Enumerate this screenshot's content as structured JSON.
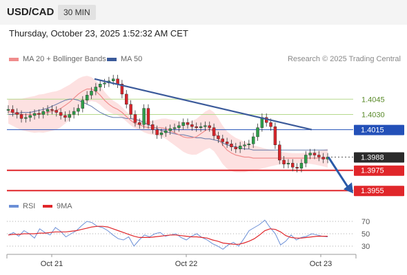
{
  "header": {
    "pair": "USD/CAD",
    "timeframe": "30 MIN"
  },
  "subheader": {
    "datetime": "Thursday, October 23, 2025 1:52:32 AM CET"
  },
  "legend": {
    "ma20": "MA 20 + Bollinger Bands",
    "ma50": "MA 50",
    "credit": "Research © 2025 Trading Central"
  },
  "rsi_legend": {
    "rsi": "RSI",
    "ma": "9MA"
  },
  "colors": {
    "ma20": "#f08c8c",
    "ma50": "#3b5a9a",
    "bollinger": "#fddcdc",
    "up": "#2e9e4a",
    "down": "#d8252b",
    "rsi": "#6b8fd6",
    "rsi_ma": "#e0262a",
    "support": "#e0262a",
    "pivot": "#2350b8",
    "resistance": "#b5d98c"
  },
  "chart_data": [
    {
      "type": "candlestick",
      "title": "USD/CAD",
      "x_ticks": [
        "Oct 21",
        "Oct 22",
        "Oct 23"
      ],
      "levels": [
        {
          "label": "1.4045",
          "value": 1.4045,
          "kind": "resistance"
        },
        {
          "label": "1.4030",
          "value": 1.403,
          "kind": "resistance"
        },
        {
          "label": "1.4015",
          "value": 1.4015,
          "kind": "pivot"
        },
        {
          "label": "1.3988",
          "value": 1.3988,
          "kind": "last"
        },
        {
          "label": "1.3975",
          "value": 1.3975,
          "kind": "support"
        },
        {
          "label": "1.3955",
          "value": 1.3955,
          "kind": "support"
        }
      ],
      "close_series": [
        1.4035,
        1.4032,
        1.403,
        1.4026,
        1.4027,
        1.4029,
        1.4031,
        1.403,
        1.4033,
        1.4035,
        1.4034,
        1.4032,
        1.4029,
        1.4027,
        1.403,
        1.4033,
        1.4036,
        1.4044,
        1.4049,
        1.4053,
        1.4057,
        1.406,
        1.4061,
        1.4063,
        1.4065,
        1.406,
        1.405,
        1.404,
        1.403,
        1.4022,
        1.402,
        1.4036,
        1.402,
        1.4015,
        1.401,
        1.4012,
        1.4014,
        1.4016,
        1.4017,
        1.4019,
        1.4022,
        1.402,
        1.4018,
        1.4017,
        1.4018,
        1.4019,
        1.4017,
        1.4009,
        1.4006,
        1.4003,
        1.4001,
        1.3998,
        1.3996,
        1.3999,
        1.4,
        1.4001,
        1.4008,
        1.4017,
        1.4027,
        1.4022,
        1.4018,
        1.4,
        1.3985,
        1.3981,
        1.3982,
        1.3978,
        1.3977,
        1.3982,
        1.399,
        1.3992,
        1.399,
        1.3988,
        1.3986,
        1.3988
      ],
      "ma20_series": [
        1.4033,
        1.4032,
        1.4031,
        1.403,
        1.403,
        1.403,
        1.403,
        1.4031,
        1.4031,
        1.4032,
        1.4033,
        1.4034,
        1.4036,
        1.4039,
        1.4042,
        1.4046,
        1.405,
        1.4053,
        1.4055,
        1.4055,
        1.4053,
        1.4049,
        1.4044,
        1.404,
        1.4037,
        1.4035,
        1.4032,
        1.4028,
        1.4024,
        1.4021,
        1.402,
        1.4018,
        1.4017,
        1.4017,
        1.4017,
        1.4017,
        1.4016,
        1.4014,
        1.4012,
        1.401,
        1.4008,
        1.4007,
        1.4007,
        1.4008,
        1.4011,
        1.4014,
        1.4016,
        1.4013,
        1.4007,
        1.4,
        1.3995,
        1.3992,
        1.399,
        1.3989,
        1.3988,
        1.3988,
        1.3987,
        1.3987,
        1.3987,
        1.3987,
        1.3987,
        1.3987,
        1.3987,
        1.3987,
        1.3987,
        1.3987,
        1.3987,
        1.3987,
        1.3987,
        1.3987,
        1.3987,
        1.3987,
        1.3987,
        1.3987
      ],
      "ma50_series": [
        1.403,
        1.403,
        1.4031,
        1.4032,
        1.4032,
        1.4032,
        1.4033,
        1.4034,
        1.4035,
        1.4036,
        1.4038,
        1.404,
        1.4042,
        1.4044,
        1.4045,
        1.4045,
        1.4044,
        1.4042,
        1.404,
        1.4038,
        1.4035,
        1.4032,
        1.403,
        1.4028,
        1.4027,
        1.4027,
        1.4027,
        1.4026,
        1.4026,
        1.4025,
        1.4024,
        1.4022,
        1.402,
        1.4018,
        1.4016,
        1.4014,
        1.4013,
        1.4012,
        1.4011,
        1.401,
        1.401,
        1.4009,
        1.4008,
        1.4007,
        1.4007,
        1.4006,
        1.4006,
        1.4005,
        1.4004,
        1.4002,
        1.4,
        1.3999,
        1.3998,
        1.3997,
        1.3996,
        1.3996,
        1.3995,
        1.3995,
        1.3995,
        1.3995,
        1.3995,
        1.3995,
        1.3995,
        1.3995,
        1.3995,
        1.3995,
        1.3995,
        1.3995,
        1.3995,
        1.3995,
        1.3995,
        1.3995,
        1.3995,
        1.3995
      ],
      "band_width": 0.0012,
      "trendline": {
        "from": [
          0.27,
          1.4065
        ],
        "to": [
          0.95,
          1.4015
        ]
      },
      "forecast_arrow": {
        "from": 1.3988,
        "to": 1.3955
      }
    },
    {
      "type": "line",
      "title": "RSI",
      "y_ticks": [
        70,
        50,
        30
      ],
      "ylim": [
        20,
        80
      ],
      "series": [
        {
          "name": "RSI",
          "values": [
            48,
            52,
            46,
            55,
            50,
            43,
            58,
            52,
            48,
            60,
            54,
            45,
            50,
            55,
            63,
            70,
            68,
            62,
            60,
            55,
            48,
            42,
            40,
            45,
            30,
            40,
            48,
            45,
            50,
            52,
            46,
            48,
            50,
            44,
            40,
            46,
            50,
            44,
            40,
            34,
            30,
            25,
            32,
            36,
            30,
            42,
            55,
            60,
            65,
            72,
            60,
            50,
            32,
            38,
            48,
            40,
            44,
            46,
            50,
            48,
            46,
            45
          ]
        },
        {
          "name": "9MA",
          "values": [
            48,
            49,
            49,
            50,
            50,
            50,
            51,
            51,
            52,
            53,
            53,
            53,
            54,
            55,
            57,
            59,
            61,
            62,
            62,
            61,
            58,
            55,
            52,
            49,
            46,
            44,
            44,
            44,
            45,
            46,
            47,
            48,
            48,
            47,
            46,
            45,
            45,
            44,
            43,
            40,
            38,
            35,
            34,
            33,
            33,
            35,
            38,
            42,
            48,
            55,
            58,
            57,
            53,
            47,
            44,
            43,
            43,
            44,
            45,
            46,
            46,
            46
          ]
        }
      ]
    }
  ]
}
